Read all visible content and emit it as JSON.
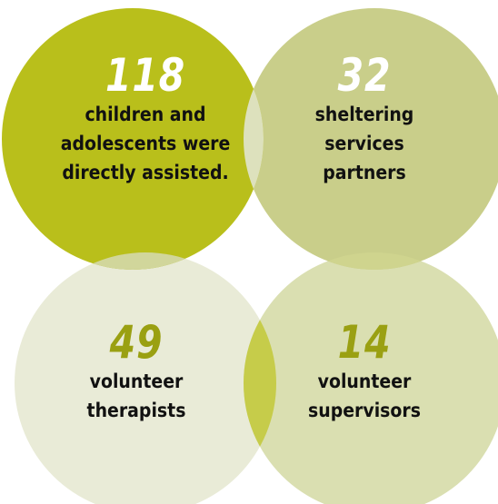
{
  "colors": {
    "circle_top_left": "#b9bf1b",
    "circle_top_right": "#c9ce8a",
    "circle_bottom_left": "#e9ebd7",
    "circle_bottom_right": "#dadfb1",
    "overlap_top": "#dde1bd",
    "overlap_left": "#d1d69b",
    "overlap_right": "#cfd48e",
    "overlap_bottom": "#c6cc4a",
    "number_dark_bg": "#ffffff",
    "number_light_bg": "#9aa012",
    "label_text": "#111111"
  },
  "stats": [
    {
      "number": "118",
      "label": "children and\nadolescents were\ndirectly assisted.",
      "number_color": "#ffffff"
    },
    {
      "number": "32",
      "label": "sheltering\nservices\npartners",
      "number_color": "#ffffff"
    },
    {
      "number": "49",
      "label": "volunteer\ntherapists",
      "number_color": "#9aa012"
    },
    {
      "number": "14",
      "label": "volunteer\nsupervisors",
      "number_color": "#9aa012"
    }
  ]
}
